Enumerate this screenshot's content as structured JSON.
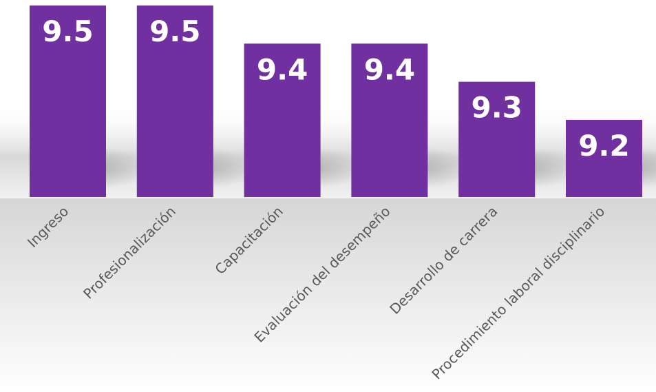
{
  "chart_data": {
    "type": "bar",
    "categories": [
      "Ingreso",
      "Profesionalización",
      "Capacitación",
      "Evaluación del desempeño",
      "Desarrollo de carrera",
      "Procedimiento laboral disciplinario"
    ],
    "values": [
      9.5,
      9.5,
      9.4,
      9.4,
      9.3,
      9.2
    ],
    "value_labels": [
      "9.5",
      "9.5",
      "9.4",
      "9.4",
      "9.3",
      "9.2"
    ],
    "title": "",
    "xlabel": "",
    "ylabel": "",
    "ylim": [
      8.9975,
      9.5
    ],
    "grid": false,
    "legend": "none",
    "bar_color": "#7030A0",
    "value_label_color": "#FFFFFF",
    "category_label_color": "#595959"
  }
}
